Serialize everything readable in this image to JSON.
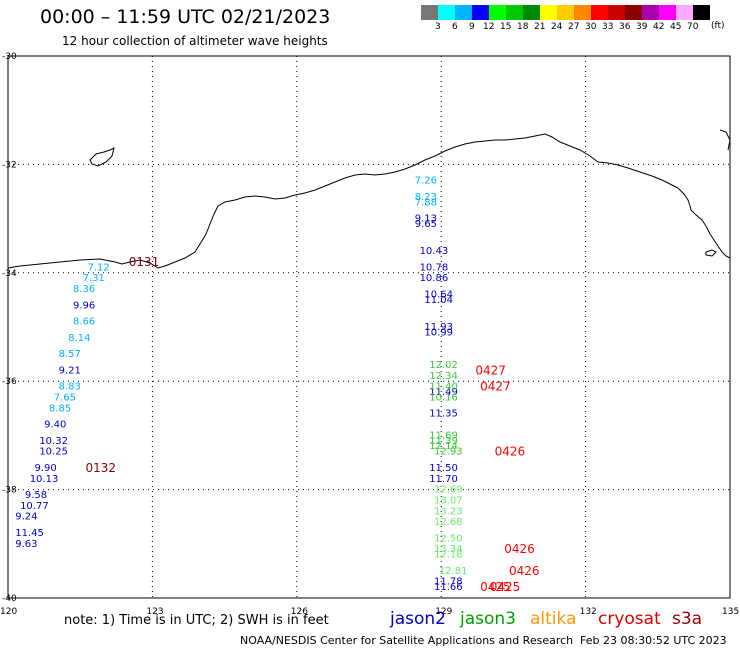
{
  "header": {
    "title": "00:00 – 11:59 UTC 02/21/2023",
    "subtitle": "12 hour collection of altimeter wave heights"
  },
  "colorbar": {
    "bins": [
      {
        "label": "3",
        "color": "#777777"
      },
      {
        "label": "6",
        "color": "#00ffff"
      },
      {
        "label": "9",
        "color": "#00b4ff"
      },
      {
        "label": "12",
        "color": "#0000ff"
      },
      {
        "label": "15",
        "color": "#00ff00"
      },
      {
        "label": "18",
        "color": "#00c800"
      },
      {
        "label": "21",
        "color": "#008800"
      },
      {
        "label": "24",
        "color": "#ffff00"
      },
      {
        "label": "27",
        "color": "#ffcc00"
      },
      {
        "label": "30",
        "color": "#ff8800"
      },
      {
        "label": "33",
        "color": "#ff0000"
      },
      {
        "label": "36",
        "color": "#cc0000"
      },
      {
        "label": "39",
        "color": "#880000"
      },
      {
        "label": "42",
        "color": "#aa00aa"
      },
      {
        "label": "45",
        "color": "#ff00ff"
      },
      {
        "label": "70",
        "color": "#ffaaff"
      },
      {
        "label": "",
        "color": "#000000"
      }
    ],
    "unit": "(ft)"
  },
  "map": {
    "lon_min": 120,
    "lon_max": 135,
    "lat_min": -40,
    "lat_max": -30,
    "lon_ticks": [
      "120",
      "123",
      "126",
      "129",
      "132",
      "135"
    ],
    "lat_ticks": [
      "-30",
      "-32",
      "-34",
      "-36",
      "-38",
      "-40"
    ]
  },
  "tracks": [
    {
      "color": "#00b4ff",
      "points": [
        {
          "lon": 121.9,
          "lat": -33.9,
          "label": "7.12"
        },
        {
          "lon": 121.8,
          "lat": -34.1,
          "label": "7.31"
        },
        {
          "lon": 121.6,
          "lat": -34.3,
          "label": "8.36"
        },
        {
          "lon": 121.6,
          "lat": -34.9,
          "label": "8.66"
        },
        {
          "lon": 121.5,
          "lat": -35.2,
          "label": "8.14"
        },
        {
          "lon": 121.3,
          "lat": -35.5,
          "label": "8.57"
        },
        {
          "lon": 121.3,
          "lat": -36.1,
          "label": "8.83"
        },
        {
          "lon": 121.2,
          "lat": -36.3,
          "label": "7.65"
        },
        {
          "lon": 121.1,
          "lat": -36.5,
          "label": "8.85"
        }
      ]
    },
    {
      "color": "#0000cc",
      "points": [
        {
          "lon": 121.6,
          "lat": -34.6,
          "label": "9.96"
        },
        {
          "lon": 121.3,
          "lat": -35.8,
          "label": "9.21"
        },
        {
          "lon": 121.0,
          "lat": -36.8,
          "label": "9.40"
        },
        {
          "lon": 120.9,
          "lat": -37.1,
          "label": "10.32"
        },
        {
          "lon": 120.9,
          "lat": -37.3,
          "label": "10.25"
        },
        {
          "lon": 120.8,
          "lat": -37.6,
          "label": "9.90"
        },
        {
          "lon": 120.7,
          "lat": -37.8,
          "label": "10.13"
        },
        {
          "lon": 120.6,
          "lat": -38.1,
          "label": "9.58"
        },
        {
          "lon": 120.5,
          "lat": -38.3,
          "label": "10.77"
        },
        {
          "lon": 120.4,
          "lat": -38.5,
          "label": "9.24"
        },
        {
          "lon": 120.4,
          "lat": -38.8,
          "label": "11.45"
        },
        {
          "lon": 120.4,
          "lat": -39.0,
          "label": "9.63"
        }
      ]
    },
    {
      "color": "#00b4ff",
      "points": [
        {
          "lon": 128.7,
          "lat": -32.3,
          "label": "7.26"
        },
        {
          "lon": 128.7,
          "lat": -32.6,
          "label": "8.23"
        },
        {
          "lon": 128.7,
          "lat": -32.7,
          "label": "7.88"
        }
      ]
    },
    {
      "color": "#0000cc",
      "points": [
        {
          "lon": 128.7,
          "lat": -33.0,
          "label": "9.13"
        },
        {
          "lon": 128.7,
          "lat": -33.1,
          "label": "9.65"
        },
        {
          "lon": 128.8,
          "lat": -33.6,
          "label": "10.43"
        },
        {
          "lon": 128.8,
          "lat": -33.9,
          "label": "10.78"
        },
        {
          "lon": 128.8,
          "lat": -34.1,
          "label": "10.86"
        },
        {
          "lon": 128.9,
          "lat": -34.4,
          "label": "10.64"
        },
        {
          "lon": 128.9,
          "lat": -34.5,
          "label": "11.04"
        },
        {
          "lon": 128.9,
          "lat": -35.0,
          "label": "11.93"
        },
        {
          "lon": 128.9,
          "lat": -35.1,
          "label": "10.99"
        },
        {
          "lon": 129.0,
          "lat": -36.2,
          "label": "11.49"
        },
        {
          "lon": 129.0,
          "lat": -36.6,
          "label": "11.35"
        },
        {
          "lon": 129.0,
          "lat": -37.6,
          "label": "11.50"
        },
        {
          "lon": 129.0,
          "lat": -37.8,
          "label": "11.70"
        },
        {
          "lon": 129.1,
          "lat": -39.7,
          "label": "11.78"
        },
        {
          "lon": 129.1,
          "lat": -39.8,
          "label": "11.66"
        }
      ]
    },
    {
      "color": "#33cc33",
      "points": [
        {
          "lon": 129.0,
          "lat": -35.7,
          "label": "12.02"
        },
        {
          "lon": 129.0,
          "lat": -35.9,
          "label": "12.34"
        },
        {
          "lon": 129.0,
          "lat": -36.1,
          "label": "11.40"
        },
        {
          "lon": 129.0,
          "lat": -36.3,
          "label": "10.16"
        },
        {
          "lon": 129.0,
          "lat": -37.0,
          "label": "11.69"
        },
        {
          "lon": 129.0,
          "lat": -37.1,
          "label": "11.39"
        },
        {
          "lon": 129.0,
          "lat": -37.2,
          "label": "12.14"
        },
        {
          "lon": 129.1,
          "lat": -37.3,
          "label": "12.93"
        }
      ]
    },
    {
      "color": "#66ee66",
      "points": [
        {
          "lon": 129.1,
          "lat": -38.0,
          "label": "12.69"
        },
        {
          "lon": 129.1,
          "lat": -38.2,
          "label": "13.07"
        },
        {
          "lon": 129.1,
          "lat": -38.4,
          "label": "13.23"
        },
        {
          "lon": 129.1,
          "lat": -38.6,
          "label": "12.68"
        },
        {
          "lon": 129.1,
          "lat": -38.9,
          "label": "12.50"
        },
        {
          "lon": 129.1,
          "lat": -39.1,
          "label": "13.34"
        },
        {
          "lon": 129.1,
          "lat": -39.2,
          "label": "12.18"
        },
        {
          "lon": 129.2,
          "lat": -39.5,
          "label": "12.81"
        }
      ]
    }
  ],
  "time_labels": [
    {
      "lon": 122.8,
      "lat": -33.8,
      "text": "0131",
      "color": "#880000"
    },
    {
      "lon": 121.9,
      "lat": -37.6,
      "text": "0132",
      "color": "#880000"
    },
    {
      "lon": 130.0,
      "lat": -35.8,
      "text": "0427",
      "color": "#ff0000"
    },
    {
      "lon": 130.1,
      "lat": -36.1,
      "text": "0427",
      "color": "#ff0000"
    },
    {
      "lon": 130.4,
      "lat": -37.3,
      "text": "0426",
      "color": "#ff0000"
    },
    {
      "lon": 130.6,
      "lat": -39.1,
      "text": "0426",
      "color": "#ff0000"
    },
    {
      "lon": 130.7,
      "lat": -39.5,
      "text": "0426",
      "color": "#ff0000"
    },
    {
      "lon": 130.1,
      "lat": -39.8,
      "text": "0425",
      "color": "#ff0000"
    },
    {
      "lon": 130.3,
      "lat": -39.8,
      "text": "0425",
      "color": "#ff0000"
    }
  ],
  "footer": {
    "note": "note:  1) Time is in UTC;  2) SWH is in feet",
    "satellites": [
      "jason2",
      "jason3",
      "altika",
      "cryosat",
      "s3a"
    ],
    "credit": "NOAA/NESDIS Center for Satellite Applications and Research",
    "timestamp": "Feb 23 08:30:52 UTC 2023"
  }
}
